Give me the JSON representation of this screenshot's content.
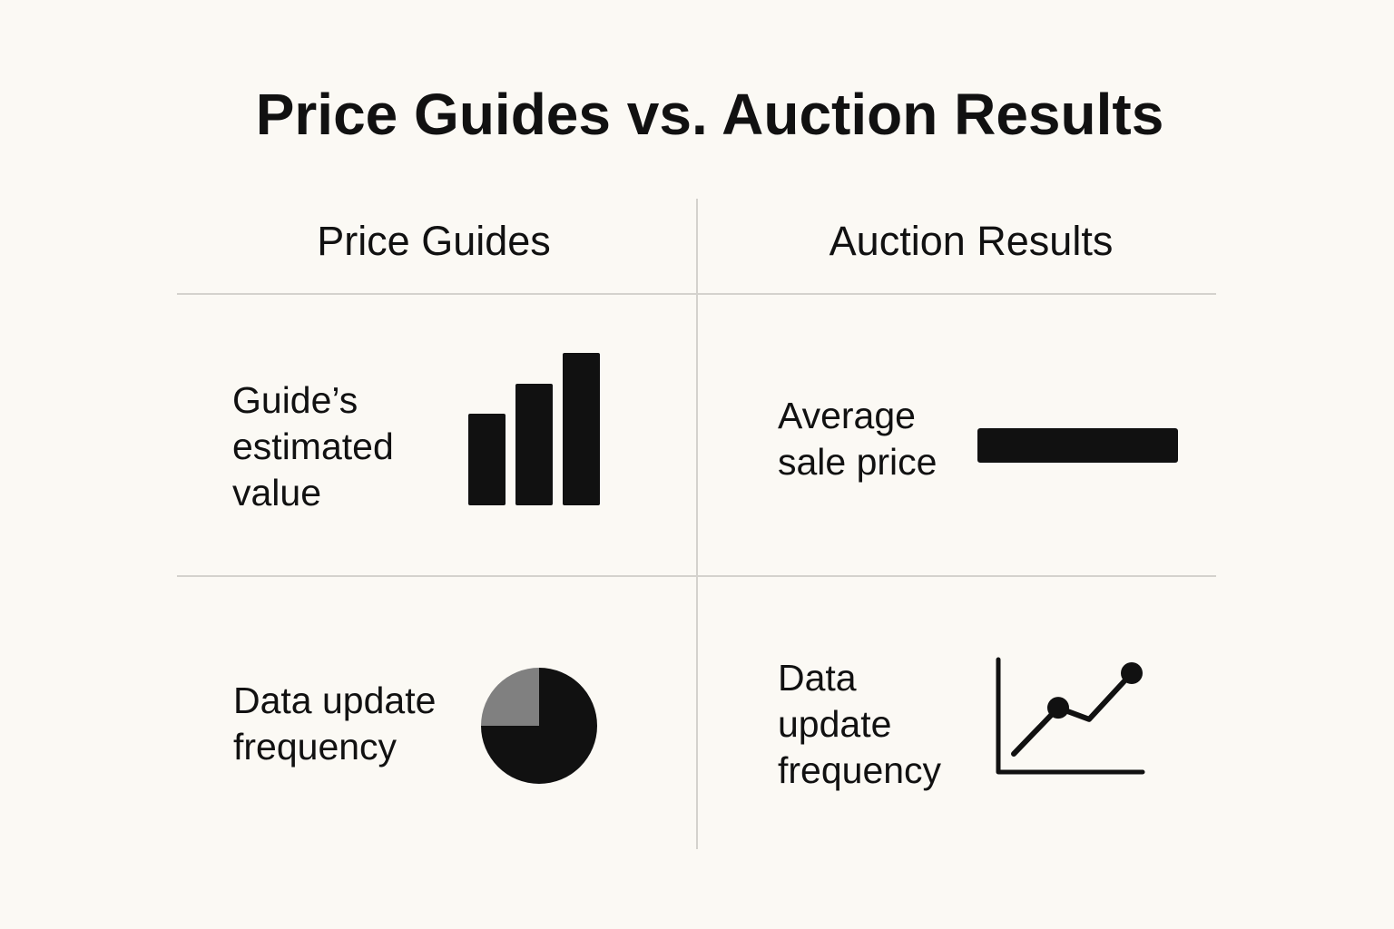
{
  "title": "Price Guides vs. Auction Results",
  "columns": {
    "left": "Price Guides",
    "right": "Auction Results"
  },
  "cells": {
    "guide_estimated_value": {
      "label": "Guide’s estimated value",
      "icon": "bar-chart-icon"
    },
    "average_sale_price": {
      "label": "Average sale price",
      "icon": "horizontal-bar-icon"
    },
    "left_update_frequency": {
      "label": "Data update frequency",
      "icon": "pie-chart-icon"
    },
    "right_update_frequency": {
      "label": "Data update frequency",
      "icon": "line-chart-icon"
    }
  },
  "colors": {
    "background": "#fbf9f4",
    "ink": "#111111",
    "divider": "#d4d2cd",
    "pie_secondary": "#808080"
  },
  "chart_data": [
    {
      "type": "bar",
      "values": [
        3,
        4,
        5
      ],
      "ylim": [
        0,
        5
      ]
    },
    {
      "type": "pie",
      "values": [
        75,
        25
      ]
    },
    {
      "type": "line",
      "values": [
        1,
        3,
        2.5,
        4.5
      ]
    }
  ]
}
